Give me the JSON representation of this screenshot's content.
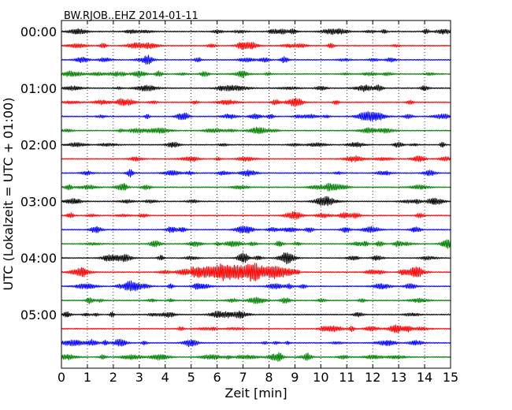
{
  "chart_data": {
    "type": "line",
    "title": "BW.RJOB..EHZ 2014-01-11",
    "xlabel": "Zeit  [min]",
    "ylabel": "UTC (Lokalzeit = UTC + 01:00)",
    "xlim": [
      0,
      15
    ],
    "x_ticks": [
      "0",
      "1",
      "2",
      "3",
      "4",
      "5",
      "6",
      "7",
      "8",
      "9",
      "10",
      "11",
      "12",
      "13",
      "14",
      "15"
    ],
    "y_ticks": [
      "00:00",
      "01:00",
      "02:00",
      "03:00",
      "04:00",
      "05:00"
    ],
    "grid": "vertical dotted lines at each minute",
    "minutes_per_row": 15,
    "row_count": 24,
    "color_cycle": [
      "#000000",
      "#ff0000",
      "#0000ff",
      "#008000"
    ],
    "event": {
      "row_start": "04:15",
      "x_start": 5.0,
      "x_end": 9.2,
      "peak_x": 6.6
    }
  }
}
